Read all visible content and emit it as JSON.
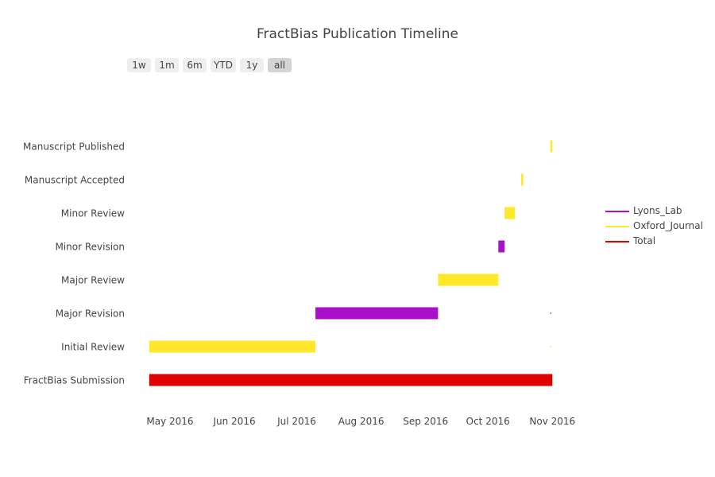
{
  "title": "FractBias Publication Timeline",
  "range_selector": {
    "buttons": [
      "1w",
      "1m",
      "6m",
      "YTD",
      "1y",
      "all"
    ],
    "active": "all"
  },
  "legend": {
    "placement": "right",
    "items": [
      {
        "name": "Lyons_Lab",
        "color": "#aa10cc"
      },
      {
        "name": "Oxford_Journal",
        "color": "#ffe82a"
      },
      {
        "name": "Total",
        "color": "#e00000"
      }
    ]
  },
  "chart_data": {
    "type": "gantt",
    "title": "FractBias Publication Timeline",
    "x_axis": {
      "type": "date",
      "range": [
        "2016-04-10",
        "2016-11-20"
      ],
      "tick_labels": [
        "May 2016",
        "Jun 2016",
        "Jul 2016",
        "Aug 2016",
        "Sep 2016",
        "Oct 2016",
        "Nov 2016"
      ],
      "tick_dates": [
        "2016-05-01",
        "2016-06-01",
        "2016-07-01",
        "2016-08-01",
        "2016-09-01",
        "2016-10-01",
        "2016-11-01"
      ]
    },
    "categories": [
      "FractBias Submission",
      "Initial Review",
      "Major Revision",
      "Major Review",
      "Minor Revision",
      "Minor Review",
      "Manuscript Accepted",
      "Manuscript Published"
    ],
    "tasks": [
      {
        "task": "FractBias Submission",
        "start": "2016-04-21",
        "end": "2016-11-01",
        "group": "Total"
      },
      {
        "task": "Initial Review",
        "start": "2016-04-21",
        "end": "2016-07-10",
        "group": "Oxford_Journal"
      },
      {
        "task": "Initial Review",
        "start": "2016-10-31",
        "end": "2016-10-31",
        "group": "Oxford_Journal"
      },
      {
        "task": "Major Revision",
        "start": "2016-07-10",
        "end": "2016-09-07",
        "group": "Lyons_Lab"
      },
      {
        "task": "Major Revision",
        "start": "2016-10-31",
        "end": "2016-10-31",
        "group": "Lyons_Lab"
      },
      {
        "task": "Major Review",
        "start": "2016-09-07",
        "end": "2016-10-06",
        "group": "Oxford_Journal"
      },
      {
        "task": "Minor Revision",
        "start": "2016-10-06",
        "end": "2016-10-09",
        "group": "Lyons_Lab"
      },
      {
        "task": "Minor Review",
        "start": "2016-10-09",
        "end": "2016-10-14",
        "group": "Oxford_Journal"
      },
      {
        "task": "Manuscript Accepted",
        "start": "2016-10-17",
        "end": "2016-10-18",
        "group": "Oxford_Journal"
      },
      {
        "task": "Manuscript Published",
        "start": "2016-10-31",
        "end": "2016-11-01",
        "group": "Oxford_Journal"
      }
    ],
    "colors": {
      "Lyons_Lab": "#aa10cc",
      "Oxford_Journal": "#ffe82a",
      "Total": "#e00000"
    },
    "grid": false,
    "legend_placement": "right"
  }
}
